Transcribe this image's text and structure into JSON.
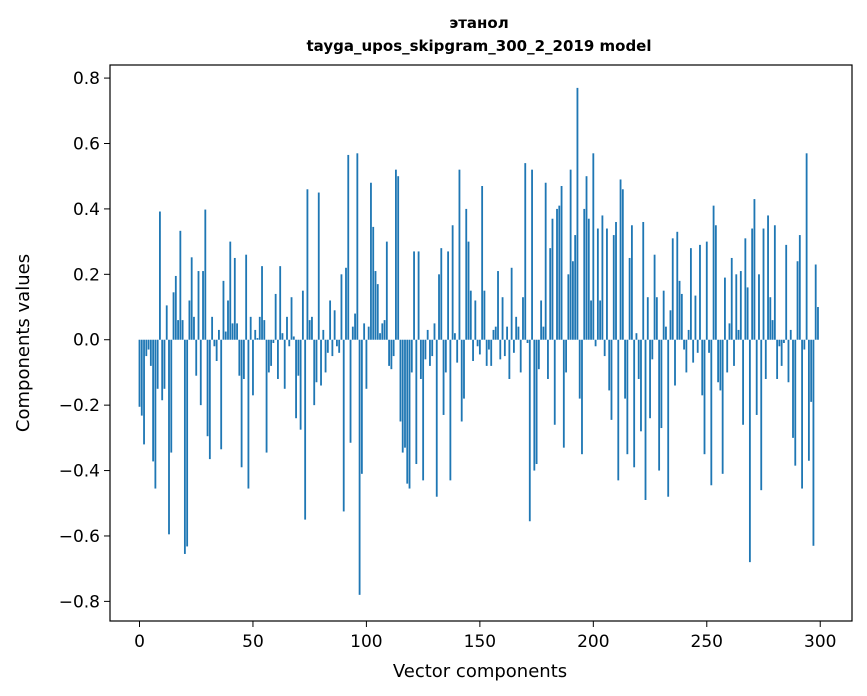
{
  "chart_data": {
    "type": "bar",
    "title": "этанол",
    "subtitle": "tayga_upos_skipgram_300_2_2019 model",
    "xlabel": "Vector components",
    "ylabel": "Components values",
    "xlim": [
      -13,
      314
    ],
    "ylim": [
      -0.86,
      0.84
    ],
    "xticks": [
      0,
      50,
      100,
      150,
      200,
      250,
      300
    ],
    "yticks": [
      -0.8,
      -0.6,
      -0.4,
      -0.2,
      0.0,
      0.2,
      0.4,
      0.6,
      0.8
    ],
    "ytick_labels": [
      "−0.8",
      "−0.6",
      "−0.4",
      "−0.2",
      "0.0",
      "0.2",
      "0.4",
      "0.6",
      "0.8"
    ],
    "bar_color": "#1f77b4",
    "grid": false,
    "x": "0..299 (one bar per vector component)",
    "values": [
      -0.205,
      -0.232,
      -0.32,
      -0.05,
      -0.03,
      -0.08,
      -0.372,
      -0.455,
      -0.15,
      0.392,
      -0.185,
      -0.15,
      0.105,
      -0.595,
      -0.345,
      0.145,
      0.195,
      0.06,
      0.333,
      0.06,
      -0.655,
      -0.632,
      0.12,
      0.252,
      0.07,
      -0.11,
      0.21,
      -0.2,
      0.21,
      0.398,
      -0.295,
      -0.365,
      0.07,
      -0.02,
      -0.065,
      0.03,
      -0.335,
      0.18,
      0.025,
      0.12,
      0.3,
      0.05,
      0.25,
      0.05,
      -0.11,
      -0.39,
      -0.12,
      0.26,
      -0.455,
      0.07,
      -0.17,
      0.03,
      0.005,
      0.07,
      0.225,
      0.06,
      -0.345,
      -0.1,
      -0.08,
      -0.01,
      0.14,
      -0.12,
      0.225,
      0.02,
      -0.15,
      0.07,
      -0.02,
      0.13,
      0.01,
      -0.24,
      -0.11,
      -0.275,
      0.15,
      -0.55,
      0.46,
      0.06,
      0.07,
      -0.2,
      -0.13,
      0.45,
      -0.14,
      0.03,
      -0.1,
      -0.04,
      0.12,
      -0.05,
      0.09,
      -0.02,
      -0.04,
      0.2,
      -0.525,
      0.22,
      0.565,
      -0.315,
      0.04,
      0.08,
      0.57,
      -0.78,
      -0.41,
      0.05,
      -0.15,
      0.04,
      0.48,
      0.345,
      0.21,
      0.17,
      0.02,
      0.05,
      0.06,
      0.3,
      -0.08,
      -0.09,
      -0.05,
      0.52,
      0.5,
      -0.25,
      -0.345,
      -0.33,
      -0.44,
      -0.455,
      -0.1,
      0.27,
      -0.38,
      0.27,
      -0.12,
      -0.43,
      -0.06,
      0.03,
      -0.08,
      -0.05,
      0.05,
      -0.48,
      0.2,
      0.28,
      -0.23,
      -0.1,
      0.27,
      -0.43,
      0.35,
      0.02,
      -0.07,
      0.52,
      -0.25,
      -0.18,
      0.4,
      0.3,
      0.15,
      -0.065,
      0.12,
      -0.02,
      -0.045,
      0.47,
      0.15,
      -0.08,
      -0.03,
      -0.08,
      0.03,
      0.04,
      0.21,
      -0.06,
      0.13,
      -0.05,
      0.04,
      -0.12,
      0.22,
      -0.04,
      0.07,
      0.04,
      -0.1,
      0.13,
      0.54,
      -0.01,
      -0.555,
      0.52,
      -0.4,
      -0.38,
      -0.09,
      0.12,
      0.04,
      0.48,
      -0.12,
      0.28,
      0.37,
      -0.26,
      0.4,
      0.41,
      0.47,
      -0.33,
      -0.1,
      0.2,
      0.52,
      0.24,
      0.32,
      0.77,
      -0.18,
      -0.35,
      0.4,
      0.5,
      0.37,
      0.12,
      0.57,
      -0.02,
      0.34,
      0.12,
      0.38,
      -0.05,
      0.34,
      -0.155,
      -0.245,
      0.32,
      0.36,
      -0.43,
      0.49,
      0.46,
      -0.18,
      -0.35,
      0.25,
      0.35,
      -0.39,
      0.02,
      -0.12,
      -0.28,
      0.36,
      -0.49,
      0.13,
      -0.24,
      -0.06,
      0.26,
      0.13,
      -0.4,
      -0.27,
      0.15,
      0.04,
      -0.48,
      0.09,
      0.31,
      -0.14,
      0.33,
      0.18,
      0.14,
      -0.03,
      -0.1,
      0.03,
      0.28,
      -0.07,
      0.135,
      -0.04,
      0.29,
      -0.17,
      -0.35,
      0.3,
      -0.04,
      -0.445,
      0.41,
      0.35,
      -0.13,
      -0.155,
      -0.41,
      0.19,
      -0.1,
      0.05,
      0.25,
      -0.08,
      0.2,
      0.03,
      0.21,
      -0.26,
      0.31,
      0.16,
      -0.68,
      0.34,
      0.43,
      -0.23,
      0.2,
      -0.46,
      0.34,
      -0.12,
      0.38,
      0.13,
      0.06,
      0.35,
      -0.12,
      -0.02,
      -0.08,
      -0.01,
      0.29,
      -0.13,
      0.03,
      -0.3,
      -0.385,
      0.24,
      0.32,
      -0.455,
      -0.03,
      0.57,
      -0.37,
      -0.19,
      -0.63,
      0.23,
      0.1
    ]
  }
}
